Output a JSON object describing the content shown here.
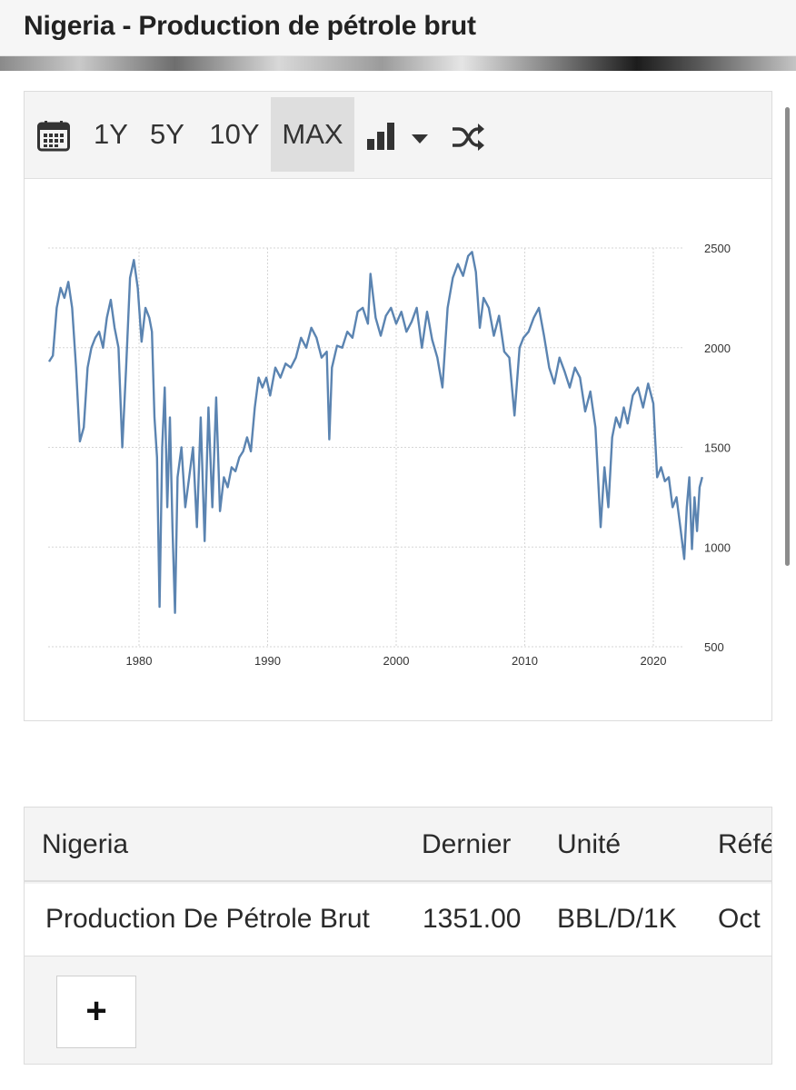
{
  "header": {
    "title": "Nigeria - Production de pétrole brut"
  },
  "toolbar": {
    "ranges": [
      "1Y",
      "5Y",
      "10Y",
      "MAX"
    ],
    "active_range": "MAX",
    "icons": [
      "calendar-icon",
      "bar-chart-icon",
      "caret-down-icon",
      "shuffle-icon"
    ]
  },
  "colors": {
    "line": "#5b84b1",
    "grid": "#d6d6d6",
    "active_btn": "#dedede"
  },
  "chart_data": {
    "type": "line",
    "title": "Nigeria - Production de pétrole brut",
    "xlabel": "",
    "ylabel": "",
    "unit": "BBL/D/1K",
    "xlim": [
      1973.0,
      2023.8
    ],
    "ylim": [
      500,
      2500
    ],
    "x_ticks": [
      1980,
      1990,
      2000,
      2010,
      2020
    ],
    "x_tick_labels": [
      "1980",
      "1990",
      "2000",
      "2010",
      "2020"
    ],
    "y_ticks": [
      500,
      1000,
      1500,
      2000,
      2500
    ],
    "y_tick_labels": [
      "500",
      "1000",
      "1500",
      "2000",
      "2500"
    ],
    "grid": true,
    "series": [
      {
        "name": "Production de pétrole brut",
        "x": [
          1973.0,
          1973.3,
          1973.6,
          1973.9,
          1974.2,
          1974.5,
          1974.8,
          1975.1,
          1975.4,
          1975.7,
          1976.0,
          1976.3,
          1976.6,
          1976.9,
          1977.2,
          1977.5,
          1977.8,
          1978.1,
          1978.4,
          1978.7,
          1979.0,
          1979.3,
          1979.6,
          1979.9,
          1980.2,
          1980.5,
          1980.8,
          1981.0,
          1981.2,
          1981.4,
          1981.6,
          1981.8,
          1982.0,
          1982.2,
          1982.4,
          1982.6,
          1982.8,
          1983.0,
          1983.3,
          1983.6,
          1983.9,
          1984.2,
          1984.5,
          1984.8,
          1985.1,
          1985.4,
          1985.7,
          1986.0,
          1986.3,
          1986.6,
          1986.9,
          1987.2,
          1987.5,
          1987.8,
          1988.1,
          1988.4,
          1988.7,
          1989.0,
          1989.3,
          1989.6,
          1989.9,
          1990.2,
          1990.6,
          1991.0,
          1991.4,
          1991.8,
          1992.2,
          1992.6,
          1993.0,
          1993.4,
          1993.8,
          1994.2,
          1994.6,
          1994.8,
          1995.0,
          1995.4,
          1995.8,
          1996.2,
          1996.6,
          1997.0,
          1997.4,
          1997.8,
          1998.0,
          1998.4,
          1998.8,
          1999.2,
          1999.6,
          2000.0,
          2000.4,
          2000.8,
          2001.2,
          2001.6,
          2002.0,
          2002.4,
          2002.8,
          2003.2,
          2003.6,
          2004.0,
          2004.4,
          2004.8,
          2005.2,
          2005.6,
          2005.9,
          2006.2,
          2006.5,
          2006.8,
          2007.2,
          2007.6,
          2008.0,
          2008.4,
          2008.8,
          2009.2,
          2009.6,
          2009.9,
          2010.3,
          2010.7,
          2011.1,
          2011.5,
          2011.9,
          2012.3,
          2012.7,
          2013.1,
          2013.5,
          2013.9,
          2014.3,
          2014.7,
          2015.1,
          2015.5,
          2015.9,
          2016.2,
          2016.5,
          2016.8,
          2017.1,
          2017.4,
          2017.7,
          2018.0,
          2018.4,
          2018.8,
          2019.2,
          2019.6,
          2020.0,
          2020.3,
          2020.6,
          2020.9,
          2021.2,
          2021.5,
          2021.8,
          2022.1,
          2022.4,
          2022.6,
          2022.8,
          2023.0,
          2023.2,
          2023.4,
          2023.6,
          2023.8
        ],
        "values": [
          1930,
          1960,
          2200,
          2300,
          2250,
          2330,
          2200,
          1900,
          1530,
          1600,
          1900,
          2000,
          2050,
          2080,
          2000,
          2150,
          2240,
          2100,
          2000,
          1500,
          1900,
          2350,
          2440,
          2300,
          2030,
          2200,
          2150,
          2080,
          1650,
          1450,
          700,
          1500,
          1800,
          1200,
          1650,
          1100,
          670,
          1350,
          1500,
          1200,
          1350,
          1500,
          1100,
          1650,
          1030,
          1700,
          1200,
          1750,
          1180,
          1350,
          1300,
          1400,
          1380,
          1450,
          1480,
          1550,
          1480,
          1700,
          1850,
          1800,
          1850,
          1760,
          1900,
          1850,
          1920,
          1900,
          1950,
          2050,
          2000,
          2100,
          2050,
          1950,
          1980,
          1540,
          1900,
          2010,
          2000,
          2080,
          2050,
          2180,
          2200,
          2120,
          2370,
          2150,
          2060,
          2160,
          2200,
          2120,
          2180,
          2080,
          2130,
          2200,
          2000,
          2180,
          2040,
          1950,
          1800,
          2200,
          2350,
          2420,
          2360,
          2460,
          2480,
          2380,
          2100,
          2250,
          2200,
          2060,
          2160,
          1980,
          1950,
          1660,
          2000,
          2050,
          2080,
          2150,
          2200,
          2060,
          1900,
          1820,
          1950,
          1880,
          1800,
          1900,
          1850,
          1680,
          1780,
          1600,
          1100,
          1400,
          1200,
          1550,
          1650,
          1600,
          1700,
          1620,
          1760,
          1800,
          1700,
          1820,
          1720,
          1350,
          1400,
          1330,
          1350,
          1200,
          1250,
          1100,
          940,
          1200,
          1350,
          990,
          1250,
          1080,
          1300,
          1351
        ]
      }
    ]
  },
  "table": {
    "headers": [
      "Nigeria",
      "Dernier",
      "Unité",
      "Référence"
    ],
    "row": [
      "Production De Pétrole Brut",
      "1351.00",
      "BBL/D/1K",
      "Oct"
    ],
    "add_label": "+"
  }
}
